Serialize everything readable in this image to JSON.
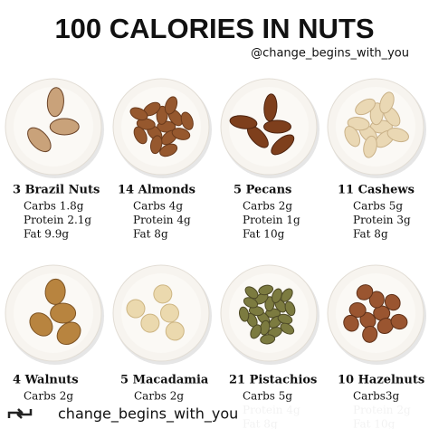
{
  "header": {
    "title": "100 CALORIES IN NUTS",
    "handle": "@change_begins_with_you"
  },
  "items": [
    {
      "name": "3 Brazil Nuts",
      "lines": [
        "Carbs 1.8g",
        "Protein 2.1g",
        "Fat 9.9g"
      ]
    },
    {
      "name": "14 Almonds",
      "lines": [
        "Carbs 4g",
        "Protein 4g",
        "Fat 8g"
      ]
    },
    {
      "name": "5 Pecans",
      "lines": [
        "Carbs 2g",
        "Protein 1g",
        "Fat 10g"
      ]
    },
    {
      "name": "11 Cashews",
      "lines": [
        "Carbs 5g",
        "Protein 3g",
        "Fat 8g"
      ]
    },
    {
      "name": "4 Walnuts",
      "lines": [
        "Carbs 2g"
      ]
    },
    {
      "name": "5 Macadamia",
      "lines": [
        "Carbs 2g"
      ]
    },
    {
      "name": "21 Pistachios",
      "lines": [
        "Carbs 5g",
        "Protein 4g",
        "Fat 8g"
      ]
    },
    {
      "name": "10 Hazelnuts",
      "lines": [
        "Carbs3g",
        "Protein 2g",
        "Fat 10g"
      ]
    }
  ],
  "footer": {
    "handle": "change_begins_with_you"
  }
}
